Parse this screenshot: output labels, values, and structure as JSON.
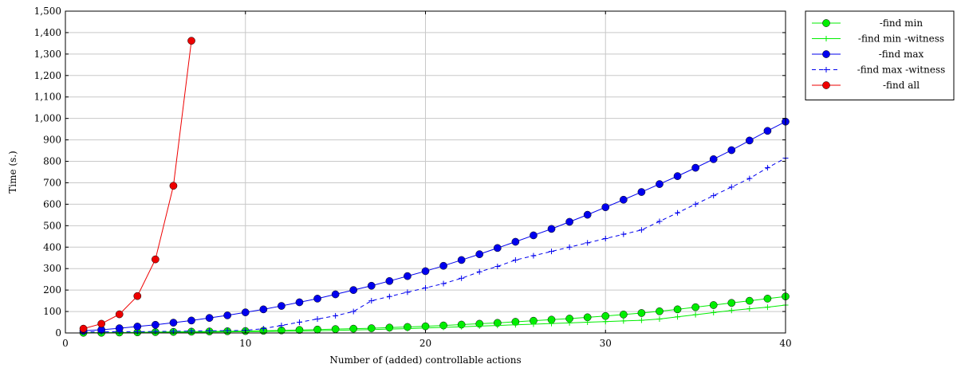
{
  "chart_data": {
    "type": "line",
    "xlabel": "Number of (added) controllable actions",
    "ylabel": "Time (s.)",
    "xlim": [
      0,
      40
    ],
    "ylim": [
      0,
      1500
    ],
    "x_ticks": [
      0,
      10,
      20,
      30,
      40
    ],
    "y_ticks": [
      0,
      100,
      200,
      300,
      400,
      500,
      600,
      700,
      800,
      900,
      1000,
      1100,
      1200,
      1300,
      1400,
      1500
    ],
    "y_tick_labels": [
      "0",
      "100",
      "200",
      "300",
      "400",
      "500",
      "600",
      "700",
      "800",
      "900",
      "1,000",
      "1,100",
      "1,200",
      "1,300",
      "1,400",
      "1,500"
    ],
    "grid": true,
    "legend_position": "outside-top-right",
    "series": [
      {
        "name": "-find min",
        "color": "#00ee00",
        "marker": "circle",
        "line": "solid",
        "x": [
          1,
          2,
          3,
          4,
          5,
          6,
          7,
          8,
          9,
          10,
          11,
          12,
          13,
          14,
          15,
          16,
          17,
          18,
          19,
          20,
          21,
          22,
          23,
          24,
          25,
          26,
          27,
          28,
          29,
          30,
          31,
          32,
          33,
          34,
          35,
          36,
          37,
          38,
          39,
          40
        ],
        "values": [
          1,
          1,
          2,
          3,
          4,
          5,
          6,
          7,
          8,
          9,
          10,
          12,
          14,
          16,
          18,
          20,
          22,
          25,
          28,
          31,
          35,
          39,
          43,
          47,
          52,
          57,
          62,
          67,
          73,
          79,
          86,
          93,
          101,
          110,
          120,
          130,
          140,
          150,
          160,
          170
        ]
      },
      {
        "name": "-find min -witness",
        "color": "#00ee00",
        "marker": "plus",
        "line": "solid",
        "x": [
          1,
          2,
          3,
          4,
          5,
          6,
          7,
          8,
          9,
          10,
          11,
          12,
          13,
          14,
          15,
          16,
          17,
          18,
          19,
          20,
          21,
          22,
          23,
          24,
          25,
          26,
          27,
          28,
          29,
          30,
          31,
          32,
          33,
          34,
          35,
          36,
          37,
          38,
          39,
          40
        ],
        "values": [
          1,
          1,
          1,
          2,
          2,
          3,
          3,
          4,
          5,
          6,
          7,
          8,
          9,
          10,
          12,
          14,
          16,
          18,
          20,
          23,
          26,
          29,
          32,
          35,
          38,
          41,
          44,
          47,
          50,
          53,
          56,
          59,
          65,
          75,
          85,
          95,
          105,
          113,
          120,
          130
        ]
      },
      {
        "name": "-find max",
        "color": "#0000ee",
        "marker": "circle",
        "line": "solid",
        "x": [
          1,
          2,
          3,
          4,
          5,
          6,
          7,
          8,
          9,
          10,
          11,
          12,
          13,
          14,
          15,
          16,
          17,
          18,
          19,
          20,
          21,
          22,
          23,
          24,
          25,
          26,
          27,
          28,
          29,
          30,
          31,
          32,
          33,
          34,
          35,
          36,
          37,
          38,
          39,
          40
        ],
        "values": [
          10,
          15,
          22,
          30,
          38,
          48,
          58,
          70,
          82,
          96,
          110,
          126,
          143,
          160,
          180,
          200,
          220,
          242,
          265,
          288,
          313,
          340,
          367,
          396,
          425,
          455,
          485,
          518,
          551,
          586,
          621,
          657,
          694,
          731,
          770,
          810,
          852,
          897,
          942,
          985
        ]
      },
      {
        "name": "-find max -witness",
        "color": "#0000ee",
        "marker": "plus",
        "line": "dashed",
        "x": [
          1,
          2,
          3,
          4,
          5,
          6,
          7,
          8,
          9,
          10,
          11,
          12,
          13,
          14,
          15,
          16,
          17,
          18,
          19,
          20,
          21,
          22,
          23,
          24,
          25,
          26,
          27,
          28,
          29,
          30,
          31,
          32,
          33,
          34,
          35,
          36,
          37,
          38,
          39,
          40
        ],
        "values": [
          5,
          5,
          6,
          6,
          7,
          8,
          9,
          10,
          11,
          12,
          20,
          35,
          50,
          65,
          80,
          100,
          150,
          170,
          190,
          210,
          230,
          255,
          285,
          310,
          340,
          360,
          380,
          400,
          420,
          440,
          460,
          480,
          520,
          560,
          600,
          640,
          680,
          720,
          770,
          815
        ]
      },
      {
        "name": "-find all",
        "color": "#ee0000",
        "marker": "circle",
        "line": "solid",
        "x": [
          1,
          2,
          3,
          4,
          5,
          6,
          7
        ],
        "values": [
          20,
          43,
          87,
          172,
          343,
          686,
          1362
        ]
      }
    ]
  }
}
